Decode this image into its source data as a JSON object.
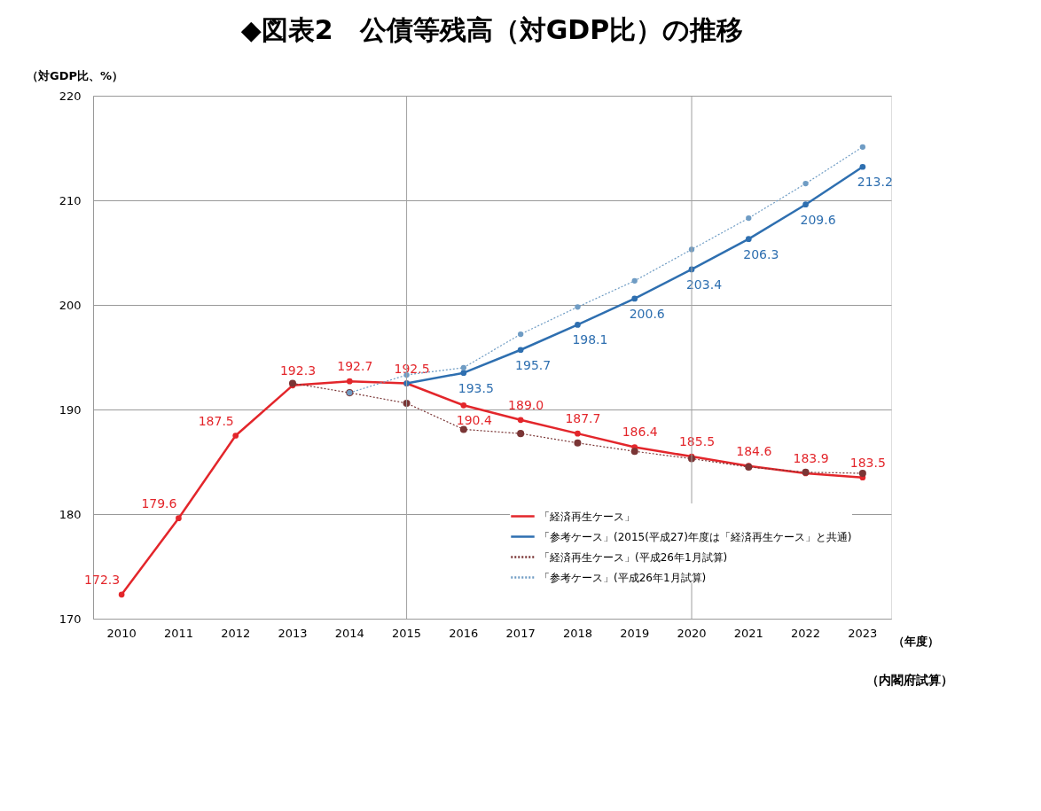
{
  "chart_data": {
    "type": "line",
    "title": "◆図表2　公債等残高（対GDP比）の推移",
    "ylabel": "（対GDP比、%）",
    "xlabel": "（年度）",
    "categories": [
      "2010",
      "2011",
      "2012",
      "2013",
      "2014",
      "2015",
      "2016",
      "2017",
      "2018",
      "2019",
      "2020",
      "2021",
      "2022",
      "2023"
    ],
    "ylim": [
      170,
      220
    ],
    "yticks": [
      170,
      180,
      190,
      200,
      210,
      220
    ],
    "grid": "y",
    "legend": "bottom right",
    "marker": "circle",
    "series": [
      {
        "name": "「経済再生ケース」",
        "color": "#e3262b",
        "line_style": "solid",
        "values": [
          172.3,
          179.6,
          187.5,
          192.3,
          192.7,
          192.5,
          190.4,
          189.0,
          187.7,
          186.4,
          185.5,
          184.6,
          183.9,
          183.5
        ],
        "value_labels": [
          "172.3",
          "179.6",
          "187.5",
          "192.3",
          "192.7",
          "192.5",
          "190.4",
          "189.0",
          "187.7",
          "186.4",
          "185.5",
          "184.6",
          "183.9",
          "183.5"
        ]
      },
      {
        "name": "「参考ケース」(2015(平成27)年度は「経済再生ケース」と共通)",
        "color": "#2e6fb0",
        "line_style": "solid",
        "values": [
          null,
          null,
          null,
          null,
          null,
          192.5,
          193.5,
          195.7,
          198.1,
          200.6,
          203.4,
          206.3,
          209.6,
          213.2
        ],
        "value_labels": [
          null,
          null,
          null,
          null,
          null,
          null,
          "193.5",
          "195.7",
          "198.1",
          "200.6",
          "203.4",
          "206.3",
          "209.6",
          "213.2"
        ]
      },
      {
        "name": "「経済再生ケース」(平成26年1月試算)",
        "color": "#7a3535",
        "line_style": "dotted",
        "values": [
          null,
          null,
          null,
          192.5,
          191.6,
          190.6,
          188.1,
          187.7,
          186.8,
          186.0,
          185.3,
          184.5,
          184.0,
          183.9
        ]
      },
      {
        "name": "「参考ケース」(平成26年1月試算)",
        "color": "#6f9cc4",
        "line_style": "dotted",
        "values": [
          null,
          null,
          null,
          null,
          191.6,
          193.3,
          194.0,
          197.2,
          199.8,
          202.3,
          205.3,
          208.3,
          211.6,
          215.1
        ]
      }
    ],
    "ref_lines": [
      {
        "axis": "x",
        "value": "2015",
        "color": "#a0a0a0"
      },
      {
        "axis": "x",
        "value": "2020",
        "color": "#a0a0a0"
      }
    ],
    "annotations": [
      "（内閣府試算）"
    ]
  }
}
